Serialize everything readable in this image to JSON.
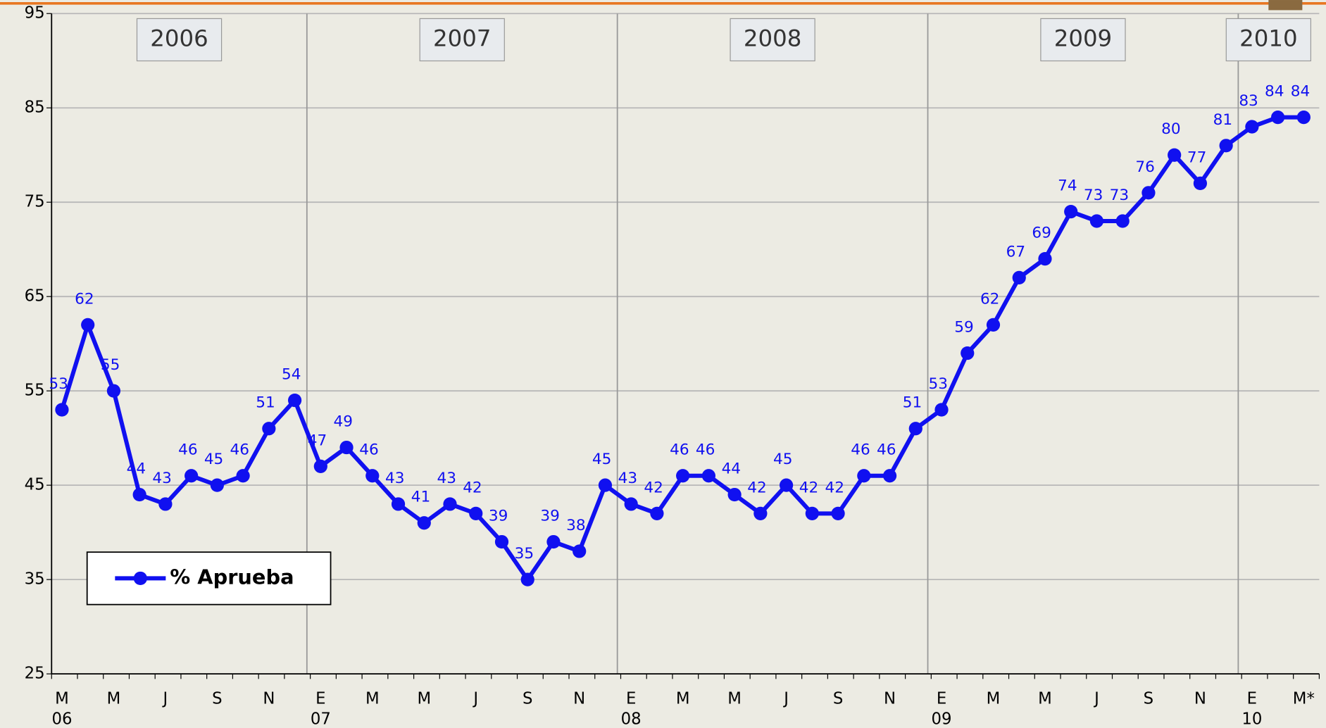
{
  "chart_data": {
    "type": "line",
    "categories": [
      "M",
      null,
      "M",
      null,
      "J",
      null,
      "S",
      null,
      "N",
      null,
      "E",
      null,
      "M",
      null,
      "M",
      null,
      "J",
      null,
      "S",
      null,
      "N",
      null,
      "E",
      null,
      "M",
      null,
      "M",
      null,
      "J",
      null,
      "S",
      null,
      "N",
      null,
      "E",
      null,
      "M",
      null,
      "M",
      null,
      "J",
      null,
      "S",
      null,
      "N",
      null,
      "E",
      null,
      "M*"
    ],
    "sub_categories": [
      "06",
      null,
      null,
      null,
      null,
      null,
      null,
      null,
      null,
      null,
      "07",
      null,
      null,
      null,
      null,
      null,
      null,
      null,
      null,
      null,
      null,
      null,
      "08",
      null,
      null,
      null,
      null,
      null,
      null,
      null,
      null,
      null,
      null,
      null,
      "09",
      null,
      null,
      null,
      null,
      null,
      null,
      null,
      null,
      null,
      null,
      null,
      "10",
      null,
      null
    ],
    "year_bands": [
      "2006",
      "2007",
      "2008",
      "2009",
      "2010"
    ],
    "series": [
      {
        "name": "% Aprueba",
        "color": "#1010f0",
        "values": [
          53,
          62,
          55,
          44,
          43,
          46,
          45,
          46,
          51,
          54,
          47,
          49,
          46,
          43,
          41,
          43,
          42,
          39,
          35,
          39,
          38,
          45,
          43,
          42,
          46,
          46,
          44,
          42,
          45,
          42,
          42,
          46,
          46,
          51,
          53,
          59,
          62,
          67,
          69,
          74,
          73,
          73,
          76,
          80,
          77,
          81,
          83,
          84,
          84
        ]
      }
    ],
    "ylim": [
      25,
      95
    ],
    "yticks": [
      25,
      35,
      45,
      55,
      65,
      75,
      85,
      95
    ],
    "grid": true,
    "legend": "lower left"
  }
}
